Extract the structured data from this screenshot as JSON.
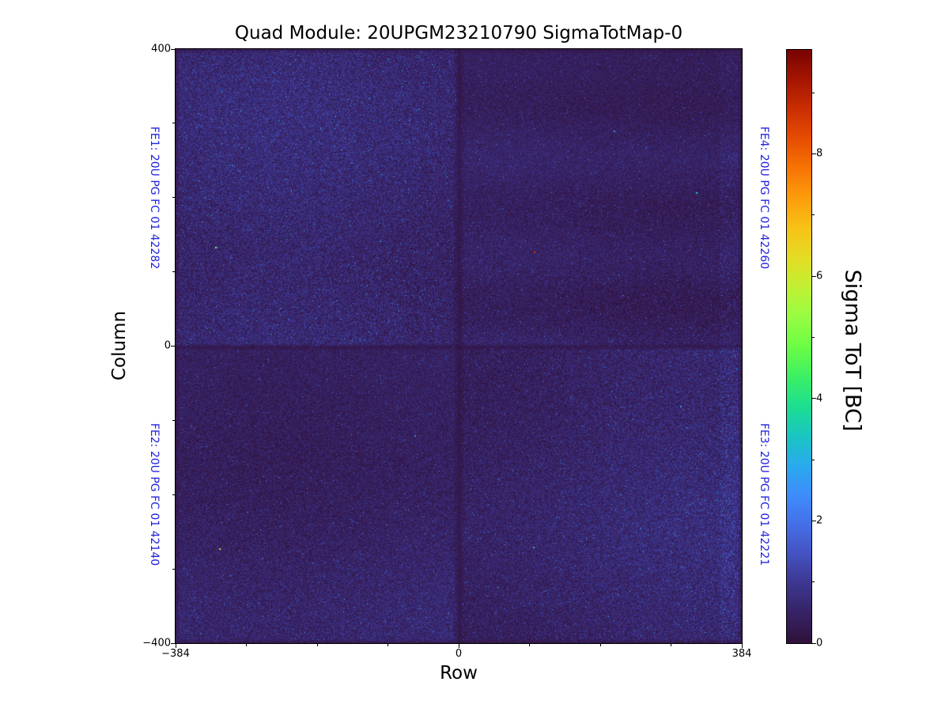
{
  "chart_data": {
    "type": "heatmap",
    "title": "Quad Module: 20UPGM23210790 SigmaTotMap-0",
    "xlabel": "Row",
    "ylabel": "Column",
    "x_range": [
      -384,
      384
    ],
    "y_range": [
      -400,
      400
    ],
    "xticks": [
      -384,
      0,
      384
    ],
    "xtick_labels": [
      "−384",
      "0",
      "384"
    ],
    "xticks_minor": [
      -288,
      -192,
      -96,
      96,
      192,
      288
    ],
    "yticks": [
      400,
      0,
      -400
    ],
    "ytick_labels": [
      "400",
      "0",
      "−400"
    ],
    "yticks_minor": [
      300,
      200,
      100,
      -100,
      -200,
      -300
    ],
    "colormap": "turbo",
    "grid": false,
    "colorbar": {
      "label": "Sigma ToT [BC]",
      "vmin": 0,
      "vmax": 9.7,
      "ticks": [
        0,
        2,
        4,
        6,
        8
      ],
      "tick_labels": [
        "0",
        "2",
        "4",
        "6",
        "8"
      ],
      "ticks_minor": [
        1,
        3,
        5,
        7,
        9
      ],
      "position": "right"
    },
    "annotation_color": "#2222dd",
    "quadrants": [
      {
        "fe": "FE1",
        "label": "FE1: 20U PG FC 01 42282",
        "position": "top-left",
        "mean_sigma_tot_bc": 0.62,
        "noise_spread": 1.0
      },
      {
        "fe": "FE2",
        "label": "FE2: 20U PG FC 01 42140",
        "position": "bottom-left",
        "mean_sigma_tot_bc": 0.5,
        "noise_spread": 1.05
      },
      {
        "fe": "FE3",
        "label": "FE3: 20U PG FC 01 42221",
        "position": "bottom-right",
        "mean_sigma_tot_bc": 0.55,
        "noise_spread": 1.0
      },
      {
        "fe": "FE4",
        "label": "FE4: 20U PG FC 01 42260",
        "position": "top-right",
        "mean_sigma_tot_bc": 0.44,
        "noise_spread": 0.95
      }
    ],
    "hot_pixels": [
      {
        "row": -330,
        "col": 134,
        "sigma_tot": 5.0
      },
      {
        "row": 102,
        "col": 127,
        "sigma_tot": 8.5
      },
      {
        "row": 322,
        "col": 207,
        "sigma_tot": 3.2
      },
      {
        "row": -325,
        "col": -272,
        "sigma_tot": 6.5
      },
      {
        "row": 101,
        "col": -270,
        "sigma_tot": 3.0
      },
      {
        "row": 210,
        "col": 290,
        "sigma_tot": 2.4
      },
      {
        "row": -60,
        "col": -120,
        "sigma_tot": 2.2
      },
      {
        "row": 300,
        "col": -80,
        "sigma_tot": 2.6
      }
    ]
  }
}
